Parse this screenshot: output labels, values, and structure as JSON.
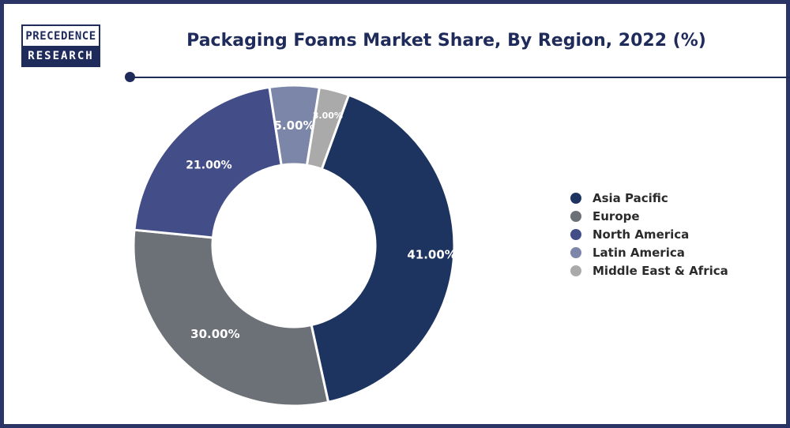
{
  "brand": {
    "line1": "PRECEDENCE",
    "line2": "RESEARCH"
  },
  "chart_data": {
    "type": "pie",
    "variant": "donut",
    "title": "Packaging Foams Market Share, By Region, 2022 (%)",
    "legend_position": "right",
    "categories": [
      "Asia Pacific",
      "Europe",
      "North America",
      "Latin America",
      "Middle East & Africa"
    ],
    "values": [
      41,
      30,
      21,
      5,
      3
    ],
    "labels": [
      "41.00%",
      "30.00%",
      "21.00%",
      "5.00%",
      "3.00%"
    ],
    "colors": [
      "#1e3460",
      "#6c7077",
      "#434e88",
      "#7c86a8",
      "#aaaaaa"
    ]
  }
}
